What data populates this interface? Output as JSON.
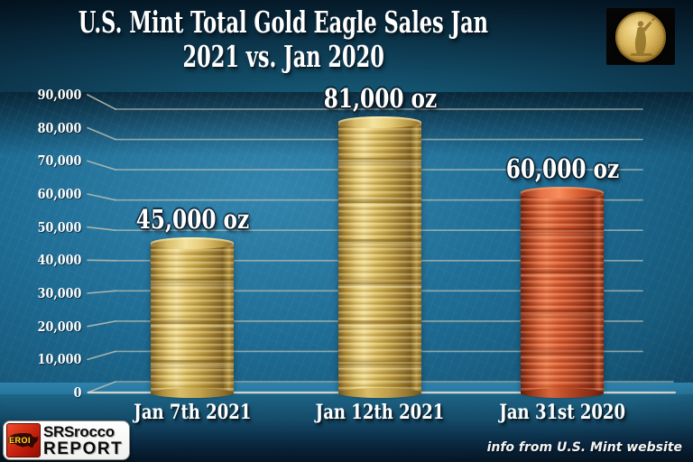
{
  "title": {
    "line1": "U.S. Mint Total Gold Eagle Sales Jan",
    "line2": "2021 vs. Jan 2020"
  },
  "chart_data": {
    "type": "bar",
    "title": "U.S. Mint Total Gold Eagle Sales Jan 2021 vs. Jan 2020",
    "categories": [
      "Jan 7th 2021",
      "Jan 12th 2021",
      "Jan 31st 2020"
    ],
    "values": [
      45000,
      81000,
      60000
    ],
    "value_labels": [
      "45,000 oz",
      "81,000 oz",
      "60,000 oz"
    ],
    "bar_colors": [
      "gold",
      "gold",
      "red"
    ],
    "unit": "oz",
    "xlabel": "",
    "ylabel": "",
    "ylim": [
      0,
      90000
    ],
    "grid": true,
    "legend": false,
    "yticks": [
      {
        "value": 0,
        "label": "0"
      },
      {
        "value": 10000,
        "label": "10,000"
      },
      {
        "value": 20000,
        "label": "20,000"
      },
      {
        "value": 30000,
        "label": "30,000"
      },
      {
        "value": 40000,
        "label": "40,000"
      },
      {
        "value": 50000,
        "label": "50,000"
      },
      {
        "value": 60000,
        "label": "60,000"
      },
      {
        "value": 70000,
        "label": "70,000"
      },
      {
        "value": 80000,
        "label": "80,000"
      },
      {
        "value": 90000,
        "label": "90,000"
      }
    ]
  },
  "branding": {
    "logo_badge": "EROI",
    "logo_name": "SRSrocco",
    "logo_suffix": "REPORT"
  },
  "footer": {
    "source_note": "info from U.S. Mint website"
  },
  "colors": {
    "gold_bar": "#dcbd62",
    "red_bar": "#c9512a",
    "wall_blue": "#1e6c94",
    "grid_line": "#bdbfb2",
    "text_white": "#ffffff"
  }
}
